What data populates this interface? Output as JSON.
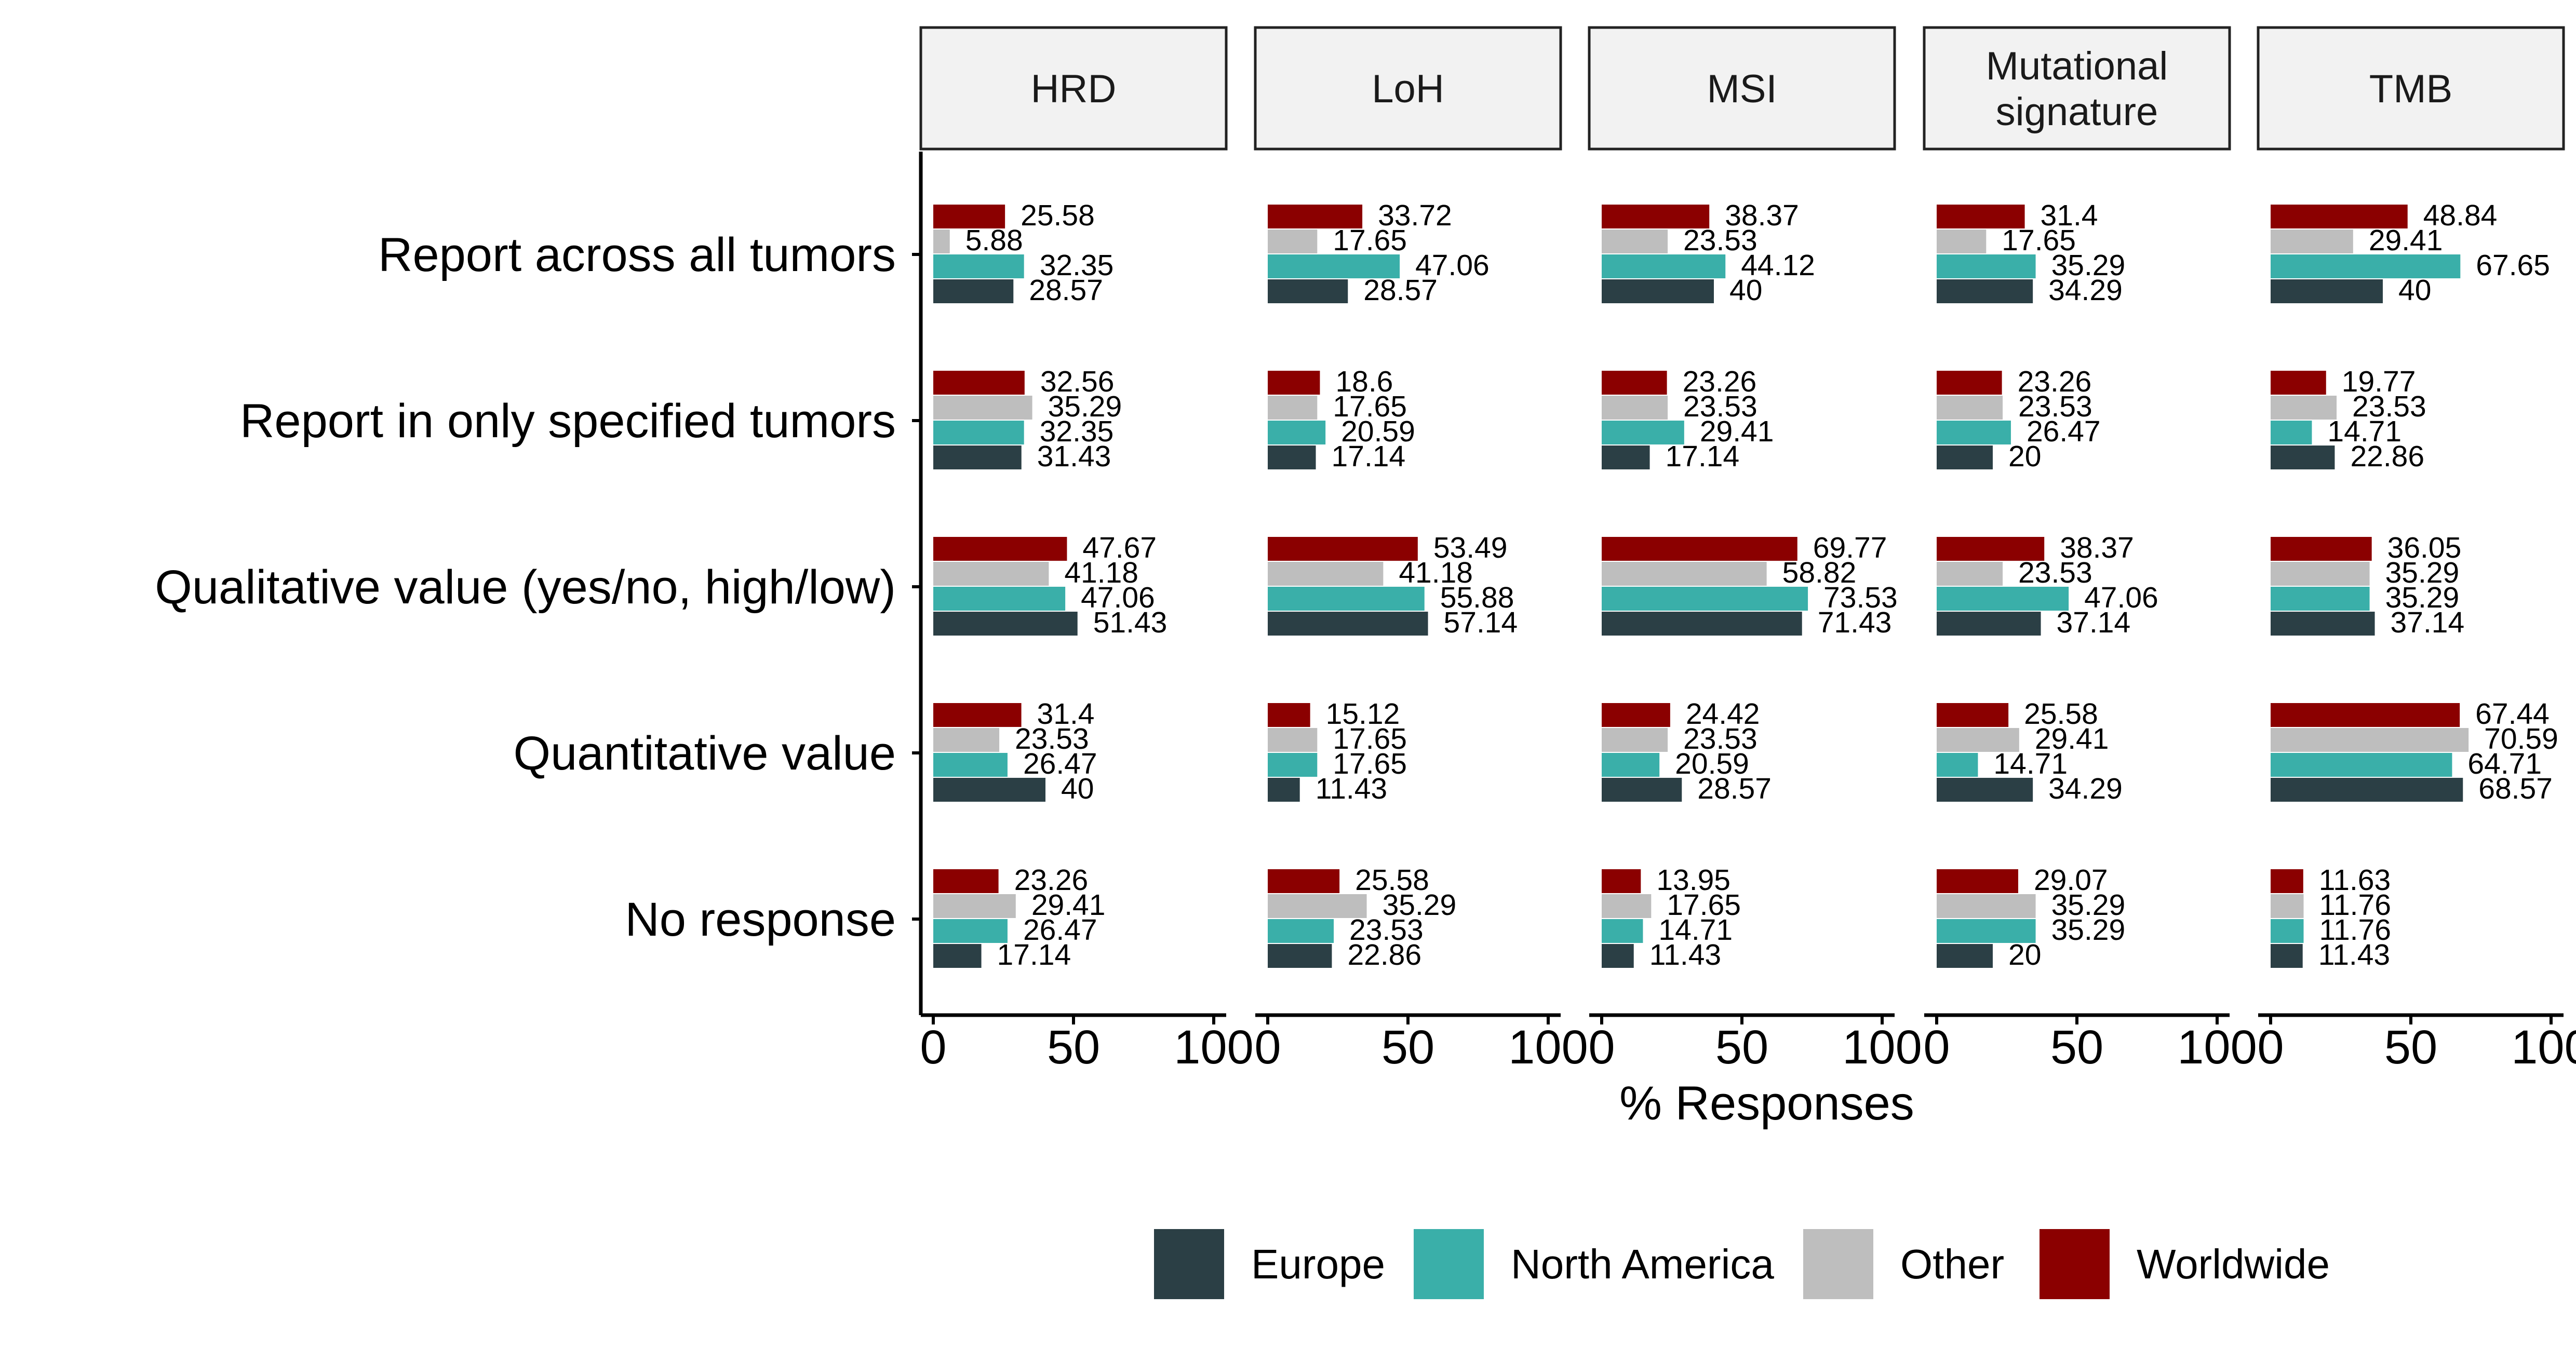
{
  "chart_data": {
    "type": "bar",
    "orientation": "horizontal",
    "xlabel": "% Responses",
    "ylabel": "",
    "title": "",
    "xlim": [
      0,
      100
    ],
    "xticks": [
      "0",
      "50",
      "100"
    ],
    "grid": false,
    "legend_position": "bottom",
    "facets": [
      "HRD",
      "LoH",
      "MSI",
      "Mutational signature",
      "TMB"
    ],
    "categories": [
      "Report across all tumors",
      "Report in only specified tumors",
      "Qualitative value (yes/no, high/low)",
      "Quantitative value",
      "No response"
    ],
    "series": [
      {
        "name": "Worldwide",
        "color": "#8b0000",
        "values": [
          [
            25.58,
            32.56,
            47.67,
            31.4,
            23.26
          ],
          [
            33.72,
            18.6,
            53.49,
            15.12,
            25.58
          ],
          [
            38.37,
            23.26,
            69.77,
            24.42,
            13.95
          ],
          [
            31.4,
            23.26,
            38.37,
            25.58,
            29.07
          ],
          [
            48.84,
            19.77,
            36.05,
            67.44,
            11.63
          ]
        ]
      },
      {
        "name": "Other",
        "color": "#bebebe",
        "values": [
          [
            5.88,
            35.29,
            41.18,
            23.53,
            29.41
          ],
          [
            17.65,
            17.65,
            41.18,
            17.65,
            35.29
          ],
          [
            23.53,
            23.53,
            58.82,
            23.53,
            17.65
          ],
          [
            17.65,
            23.53,
            23.53,
            29.41,
            35.29
          ],
          [
            29.41,
            23.53,
            35.29,
            70.59,
            11.76
          ]
        ]
      },
      {
        "name": "North America",
        "color": "#3aafa9",
        "values": [
          [
            32.35,
            32.35,
            47.06,
            26.47,
            26.47
          ],
          [
            47.06,
            20.59,
            55.88,
            17.65,
            23.53
          ],
          [
            44.12,
            29.41,
            73.53,
            20.59,
            14.71
          ],
          [
            35.29,
            26.47,
            47.06,
            14.71,
            35.29
          ],
          [
            67.65,
            14.71,
            35.29,
            64.71,
            11.76
          ]
        ]
      },
      {
        "name": "Europe",
        "color": "#2b3f45",
        "values": [
          [
            28.57,
            31.43,
            51.43,
            40,
            17.14
          ],
          [
            28.57,
            17.14,
            57.14,
            11.43,
            22.86
          ],
          [
            40,
            17.14,
            71.43,
            28.57,
            11.43
          ],
          [
            34.29,
            20,
            37.14,
            34.29,
            20
          ],
          [
            40,
            22.86,
            37.14,
            68.57,
            11.43
          ]
        ]
      }
    ],
    "legend_order": [
      "Europe",
      "North America",
      "Other",
      "Worldwide"
    ]
  }
}
